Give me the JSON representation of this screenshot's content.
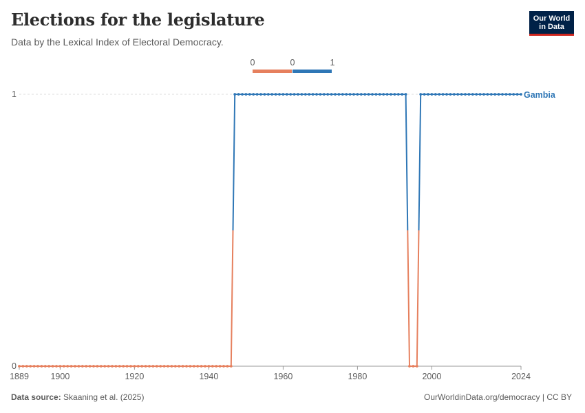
{
  "header": {
    "title": "Elections for the legislature",
    "subtitle": "Data by the Lexical Index of Electoral Democracy."
  },
  "logo": {
    "line1": "Our World",
    "line2": "in Data"
  },
  "footer": {
    "source_label": "Data source:",
    "source_text": "Skaaning et al. (2025)",
    "url_text": "OurWorldinData.org/democracy | CC BY"
  },
  "legend": {
    "bins": [
      {
        "from": "0",
        "to": "0",
        "color": "#e6805e"
      },
      {
        "from": "0",
        "to": "1",
        "color": "#2f77b6"
      }
    ]
  },
  "colors": {
    "zero": "#e6805e",
    "one": "#2f77b6"
  },
  "chart_data": {
    "type": "line",
    "xlim": [
      1889,
      2024
    ],
    "ylim": [
      0,
      1
    ],
    "x_ticks": [
      1889,
      1900,
      1920,
      1940,
      1960,
      1980,
      2000,
      2024
    ],
    "y_ticks": [
      0,
      1
    ],
    "series": [
      {
        "name": "Gambia",
        "segments": [
          {
            "start": 1889,
            "end": 1946,
            "value": 0
          },
          {
            "start": 1947,
            "end": 1993,
            "value": 1
          },
          {
            "start": 1994,
            "end": 1996,
            "value": 0
          },
          {
            "start": 1997,
            "end": 2024,
            "value": 1
          }
        ]
      }
    ]
  }
}
